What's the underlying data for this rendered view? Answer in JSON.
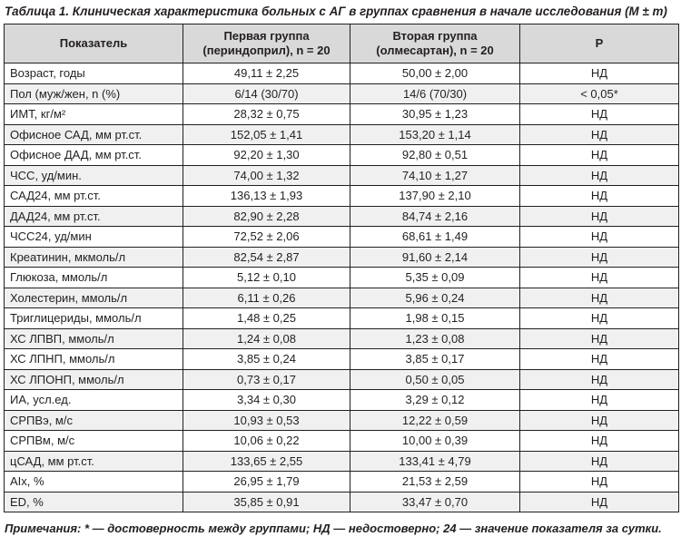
{
  "caption": "Таблица 1. Клиническая характеристика больных с АГ в группах сравнения в начале исследования (M ± m)",
  "table": {
    "headers": [
      {
        "line1": "Показатель",
        "line2": ""
      },
      {
        "line1": "Первая группа",
        "line2": "(периндоприл), n = 20"
      },
      {
        "line1": "Вторая группа",
        "line2": "(олмесартан), n = 20"
      },
      {
        "line1": "Р",
        "line2": ""
      }
    ],
    "rows": [
      [
        "Возраст, годы",
        "49,11 ± 2,25",
        "50,00 ± 2,00",
        "НД"
      ],
      [
        "Пол (муж/жен, n (%)",
        "6/14 (30/70)",
        "14/6 (70/30)",
        "< 0,05*"
      ],
      [
        "ИМТ, кг/м²",
        "28,32 ± 0,75",
        "30,95 ± 1,23",
        "НД"
      ],
      [
        "Офисное САД, мм рт.ст.",
        "152,05 ± 1,41",
        "153,20 ± 1,14",
        "НД"
      ],
      [
        "Офисное ДАД, мм рт.ст.",
        "92,20 ± 1,30",
        "92,80 ± 0,51",
        "НД"
      ],
      [
        "ЧСС, уд/мин.",
        "74,00 ± 1,32",
        "74,10 ± 1,27",
        "НД"
      ],
      [
        "САД24, мм рт.ст.",
        "136,13 ± 1,93",
        "137,90 ± 2,10",
        "НД"
      ],
      [
        "ДАД24, мм рт.ст.",
        "82,90 ± 2,28",
        "84,74 ± 2,16",
        "НД"
      ],
      [
        "ЧСС24, уд/мин",
        "72,52 ± 2,06",
        "68,61 ± 1,49",
        "НД"
      ],
      [
        "Креатинин, мкмоль/л",
        "82,54 ± 2,87",
        "91,60 ± 2,14",
        "НД"
      ],
      [
        "Глюкоза, ммоль/л",
        "5,12 ± 0,10",
        "5,35 ± 0,09",
        "НД"
      ],
      [
        "Холестерин, ммоль/л",
        "6,11 ± 0,26",
        "5,96 ± 0,24",
        "НД"
      ],
      [
        "Триглицериды, ммоль/л",
        "1,48 ± 0,25",
        "1,98 ± 0,15",
        "НД"
      ],
      [
        "ХС ЛПВП, ммоль/л",
        "1,24 ± 0,08",
        "1,23 ± 0,08",
        "НД"
      ],
      [
        "ХС ЛПНП, ммоль/л",
        "3,85 ± 0,24",
        "3,85 ± 0,17",
        "НД"
      ],
      [
        "ХС ЛПОНП, ммоль/л",
        "0,73 ± 0,17",
        "0,50 ± 0,05",
        "НД"
      ],
      [
        "ИА, усл.ед.",
        "3,34 ± 0,30",
        "3,29 ± 0,12",
        "НД"
      ],
      [
        "СРПВэ, м/с",
        "10,93 ± 0,53",
        "12,22 ± 0,59",
        "НД"
      ],
      [
        "СРПВм, м/с",
        "10,06 ± 0,22",
        "10,00 ± 0,39",
        "НД"
      ],
      [
        "цСАД, мм рт.ст.",
        "133,65 ± 2,55",
        "133,41 ± 4,79",
        "НД"
      ],
      [
        "AIx, %",
        "26,95 ± 1,79",
        "21,53 ± 2,59",
        "НД"
      ],
      [
        "ED, %",
        "35,85 ± 0,91",
        "33,47 ± 0,70",
        "НД"
      ]
    ]
  },
  "note": "Примечания: * — достоверность между группами; НД — недостоверно; 24 — значение показателя за сутки."
}
